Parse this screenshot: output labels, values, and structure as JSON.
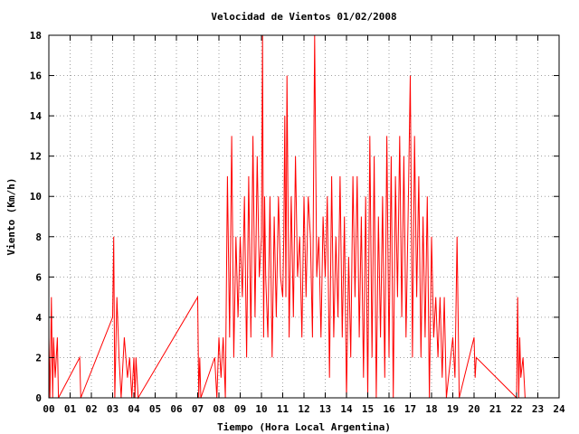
{
  "chart_data": {
    "type": "line",
    "title": "Velocidad de Vientos 01/02/2008",
    "xlabel": "Tiempo (Hora Local Argentina)",
    "ylabel": "Viento (Km/h)",
    "xlim": [
      0,
      24
    ],
    "ylim": [
      0,
      18
    ],
    "x_tick_labels": [
      "00",
      "01",
      "02",
      "03",
      "04",
      "05",
      "06",
      "07",
      "08",
      "09",
      "10",
      "11",
      "12",
      "13",
      "14",
      "15",
      "16",
      "17",
      "18",
      "19",
      "20",
      "21",
      "22",
      "23",
      "24"
    ],
    "y_tick_labels": [
      "0",
      "2",
      "4",
      "6",
      "8",
      "10",
      "12",
      "14",
      "16",
      "18"
    ],
    "grid": true,
    "series": [
      {
        "color": "#ff0000",
        "x": [
          0.0,
          0.05,
          0.08,
          0.12,
          0.18,
          0.22,
          0.3,
          0.4,
          0.45,
          1.45,
          1.5,
          3.0,
          3.05,
          3.1,
          3.2,
          3.3,
          3.4,
          3.55,
          3.7,
          3.8,
          3.9,
          4.0,
          4.05,
          4.1,
          4.2,
          7.0,
          7.05,
          7.1,
          7.15,
          7.8,
          7.9,
          8.0,
          8.1,
          8.2,
          8.3,
          8.4,
          8.5,
          8.6,
          8.7,
          8.8,
          8.9,
          9.0,
          9.1,
          9.2,
          9.3,
          9.4,
          9.5,
          9.6,
          9.7,
          9.8,
          9.9,
          10.0,
          10.05,
          10.1,
          10.15,
          10.2,
          10.3,
          10.4,
          10.5,
          10.6,
          10.7,
          10.8,
          10.9,
          11.0,
          11.05,
          11.1,
          11.15,
          11.2,
          11.3,
          11.4,
          11.5,
          11.6,
          11.7,
          11.8,
          11.9,
          12.0,
          12.1,
          12.2,
          12.3,
          12.4,
          12.45,
          12.5,
          12.6,
          12.7,
          12.8,
          12.9,
          13.0,
          13.1,
          13.2,
          13.3,
          13.4,
          13.5,
          13.6,
          13.7,
          13.8,
          13.9,
          14.0,
          14.1,
          14.2,
          14.3,
          14.4,
          14.5,
          14.6,
          14.7,
          14.8,
          14.9,
          15.0,
          15.1,
          15.2,
          15.3,
          15.4,
          15.5,
          15.6,
          15.7,
          15.8,
          15.9,
          16.0,
          16.1,
          16.2,
          16.3,
          16.4,
          16.5,
          16.6,
          16.7,
          16.8,
          16.9,
          17.0,
          17.1,
          17.2,
          17.3,
          17.4,
          17.5,
          17.6,
          17.7,
          17.8,
          17.9,
          18.0,
          18.1,
          18.2,
          18.3,
          18.4,
          18.5,
          18.6,
          18.7,
          19.0,
          19.1,
          19.2,
          19.3,
          20.0,
          20.05,
          20.1,
          22.0,
          22.05,
          22.1,
          22.15,
          22.2,
          22.3,
          22.4
        ],
        "y": [
          3,
          0,
          2,
          5,
          0,
          3,
          1,
          3,
          0,
          2,
          0,
          4,
          8,
          0,
          5,
          2,
          0,
          3,
          1,
          2,
          0,
          2,
          0,
          2,
          0,
          5,
          0,
          2,
          0,
          2,
          0,
          3,
          1,
          3,
          0,
          11,
          3,
          13,
          2,
          8,
          4,
          8,
          5,
          10,
          2,
          11,
          3,
          13,
          4,
          12,
          6,
          8,
          18,
          3,
          10,
          6,
          3,
          10,
          2,
          9,
          4,
          10,
          6,
          5,
          8,
          14,
          5,
          16,
          3,
          10,
          4,
          12,
          6,
          8,
          3,
          10,
          5,
          10,
          8,
          3,
          11,
          18,
          6,
          8,
          3,
          9,
          6,
          10,
          1,
          11,
          3,
          8,
          4,
          11,
          3,
          9,
          0,
          7,
          2,
          11,
          5,
          11,
          3,
          9,
          1,
          10,
          0,
          13,
          2,
          12,
          0,
          9,
          3,
          10,
          1,
          13,
          2,
          12,
          0,
          11,
          5,
          13,
          4,
          12,
          3,
          9,
          16,
          2,
          13,
          5,
          11,
          2,
          9,
          3,
          10,
          0,
          8,
          3,
          5,
          2,
          5,
          1,
          5,
          0,
          3,
          1,
          8,
          0,
          3,
          1,
          2,
          0,
          5,
          0,
          3,
          1,
          2,
          0
        ]
      }
    ]
  }
}
